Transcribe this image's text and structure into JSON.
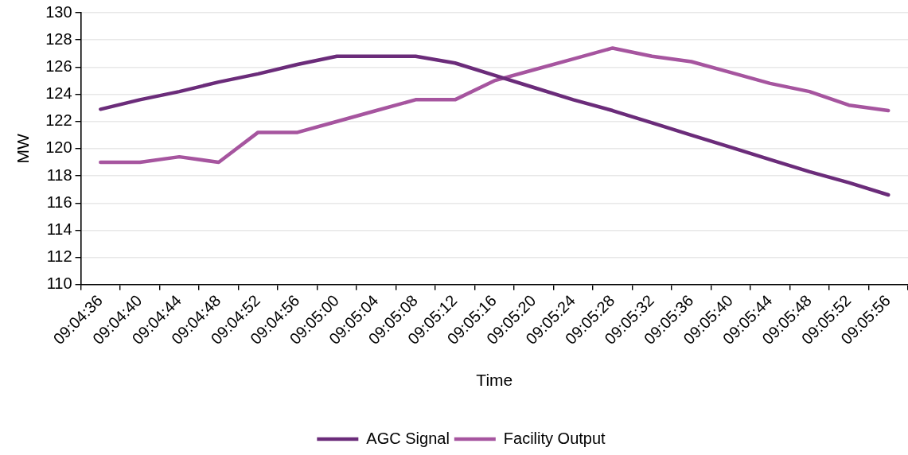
{
  "chart_data": {
    "type": "line",
    "xlabel": "Time",
    "ylabel": "MW",
    "categories": [
      "09:04:36",
      "09:04:40",
      "09:04:44",
      "09:04:48",
      "09:04:52",
      "09:04:56",
      "09:05:00",
      "09:05:04",
      "09:05:08",
      "09:05:12",
      "09:05:16",
      "09:05:20",
      "09:05:24",
      "09:05:28",
      "09:05:32",
      "09:05:36",
      "09:05:40",
      "09:05:44",
      "09:05:48",
      "09:05:52",
      "09:05:56"
    ],
    "series": [
      {
        "name": "AGC Signal",
        "color": "#6b2c7a",
        "values": [
          122.9,
          123.6,
          124.2,
          124.9,
          125.5,
          126.2,
          126.8,
          126.8,
          126.8,
          126.3,
          125.4,
          124.5,
          123.6,
          122.8,
          121.9,
          121.0,
          120.1,
          119.2,
          118.3,
          117.5,
          116.6
        ]
      },
      {
        "name": "Facility Output",
        "color": "#a6559f",
        "values": [
          119.0,
          119.0,
          119.4,
          119.0,
          121.2,
          121.2,
          122.0,
          122.8,
          123.6,
          123.6,
          125.0,
          125.8,
          126.6,
          127.4,
          126.8,
          126.4,
          125.6,
          124.8,
          124.2,
          123.2,
          122.8
        ]
      }
    ],
    "ylim": [
      110,
      130
    ],
    "yticks": [
      110,
      112,
      114,
      116,
      118,
      120,
      122,
      124,
      126,
      128,
      130
    ],
    "grid": "y",
    "legend": "bottom",
    "marker": "none",
    "line_style": "solid"
  }
}
